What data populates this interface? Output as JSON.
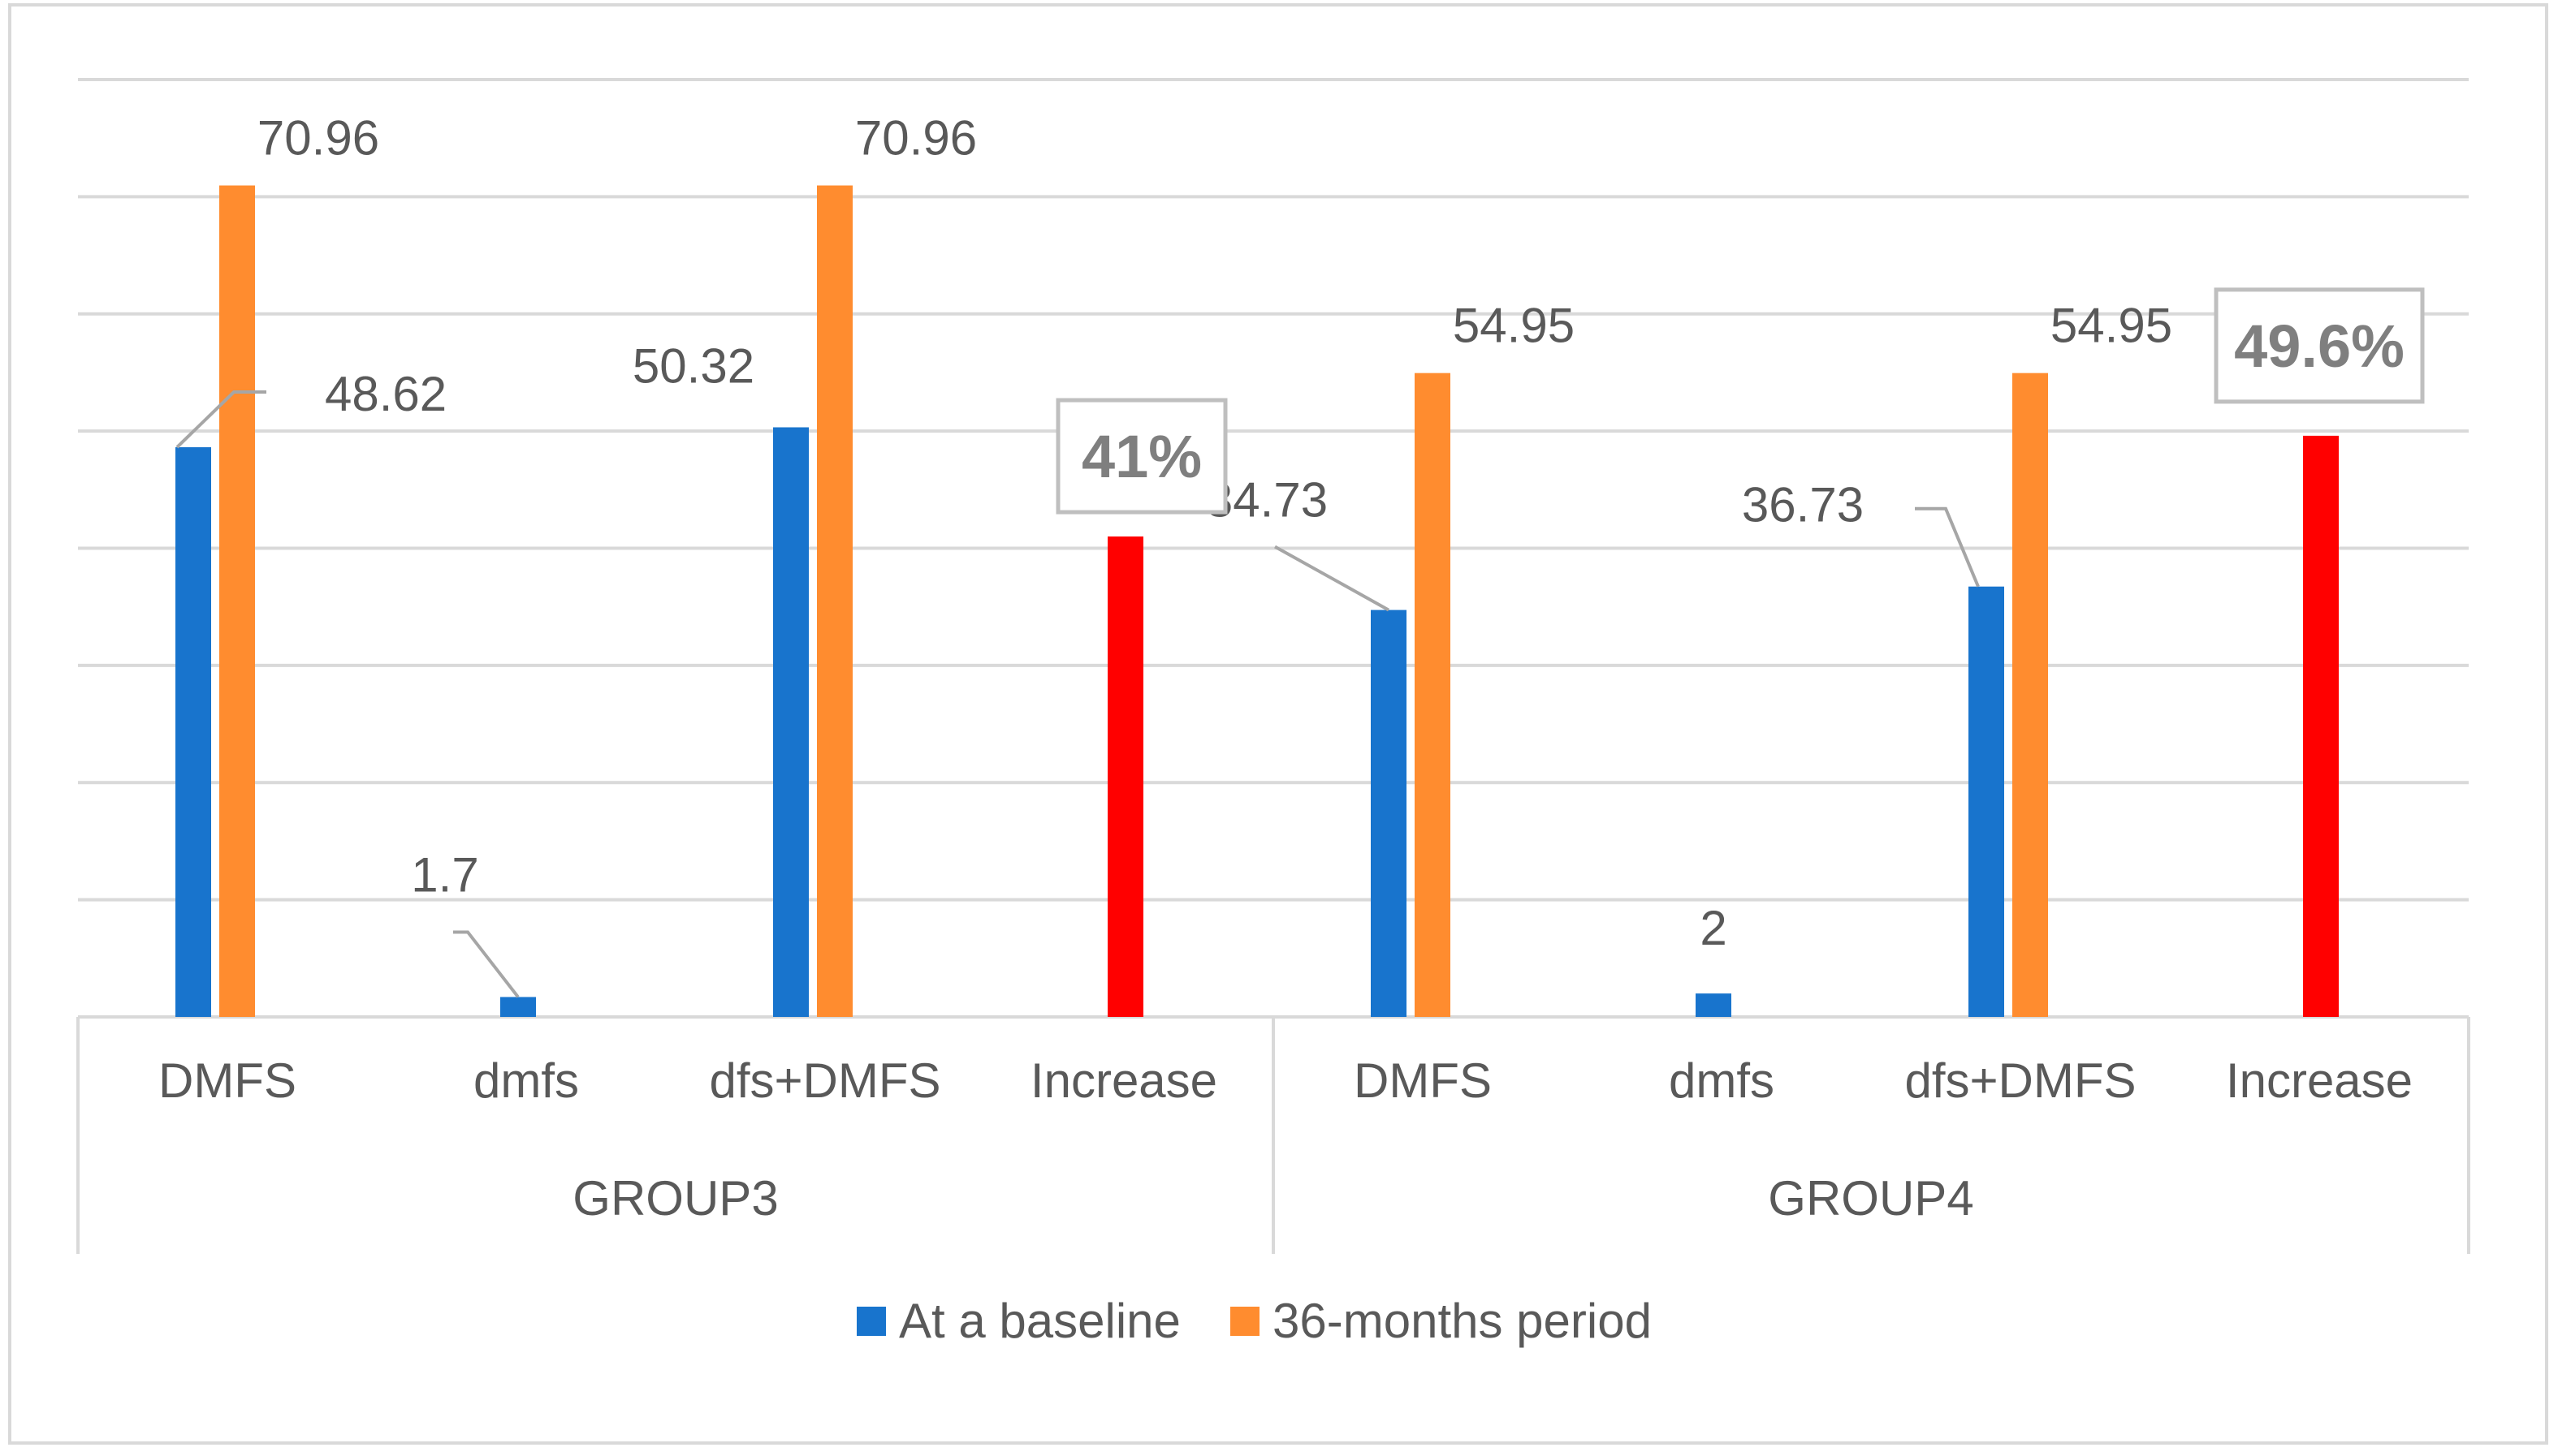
{
  "chart_data": {
    "type": "bar",
    "title": "",
    "xlabel": "",
    "ylabel": "",
    "ylim": [
      0,
      80
    ],
    "grid": true,
    "legend_position": "bottom",
    "groups": [
      {
        "label": "GROUP3",
        "categories": [
          "DMFS",
          "dmfs",
          "dfs+DMFS",
          "Increase"
        ]
      },
      {
        "label": "GROUP4",
        "categories": [
          "DMFS",
          "dmfs",
          "dfs+DMFS",
          "Increase"
        ]
      }
    ],
    "series": [
      {
        "name": "At a baseline",
        "color": "#1874CD",
        "values": [
          48.62,
          1.7,
          50.32,
          null,
          34.73,
          2,
          36.73,
          null
        ],
        "labels": [
          "48.62",
          "1.7",
          "50.32",
          null,
          "34.73",
          "2",
          "36.73",
          null
        ]
      },
      {
        "name": "36-months period",
        "color": "#FF8C2F",
        "values": [
          70.96,
          null,
          70.96,
          null,
          54.95,
          null,
          54.95,
          null
        ],
        "labels": [
          "70.96",
          null,
          "70.96",
          null,
          "54.95",
          null,
          "54.95",
          null
        ]
      },
      {
        "name": "Increase",
        "color": "#FF0000",
        "show_in_legend": false,
        "values": [
          null,
          null,
          null,
          41,
          null,
          null,
          null,
          49.6
        ],
        "labels": [
          null,
          null,
          null,
          "41%",
          null,
          null,
          null,
          "49.6%"
        ]
      }
    ]
  }
}
